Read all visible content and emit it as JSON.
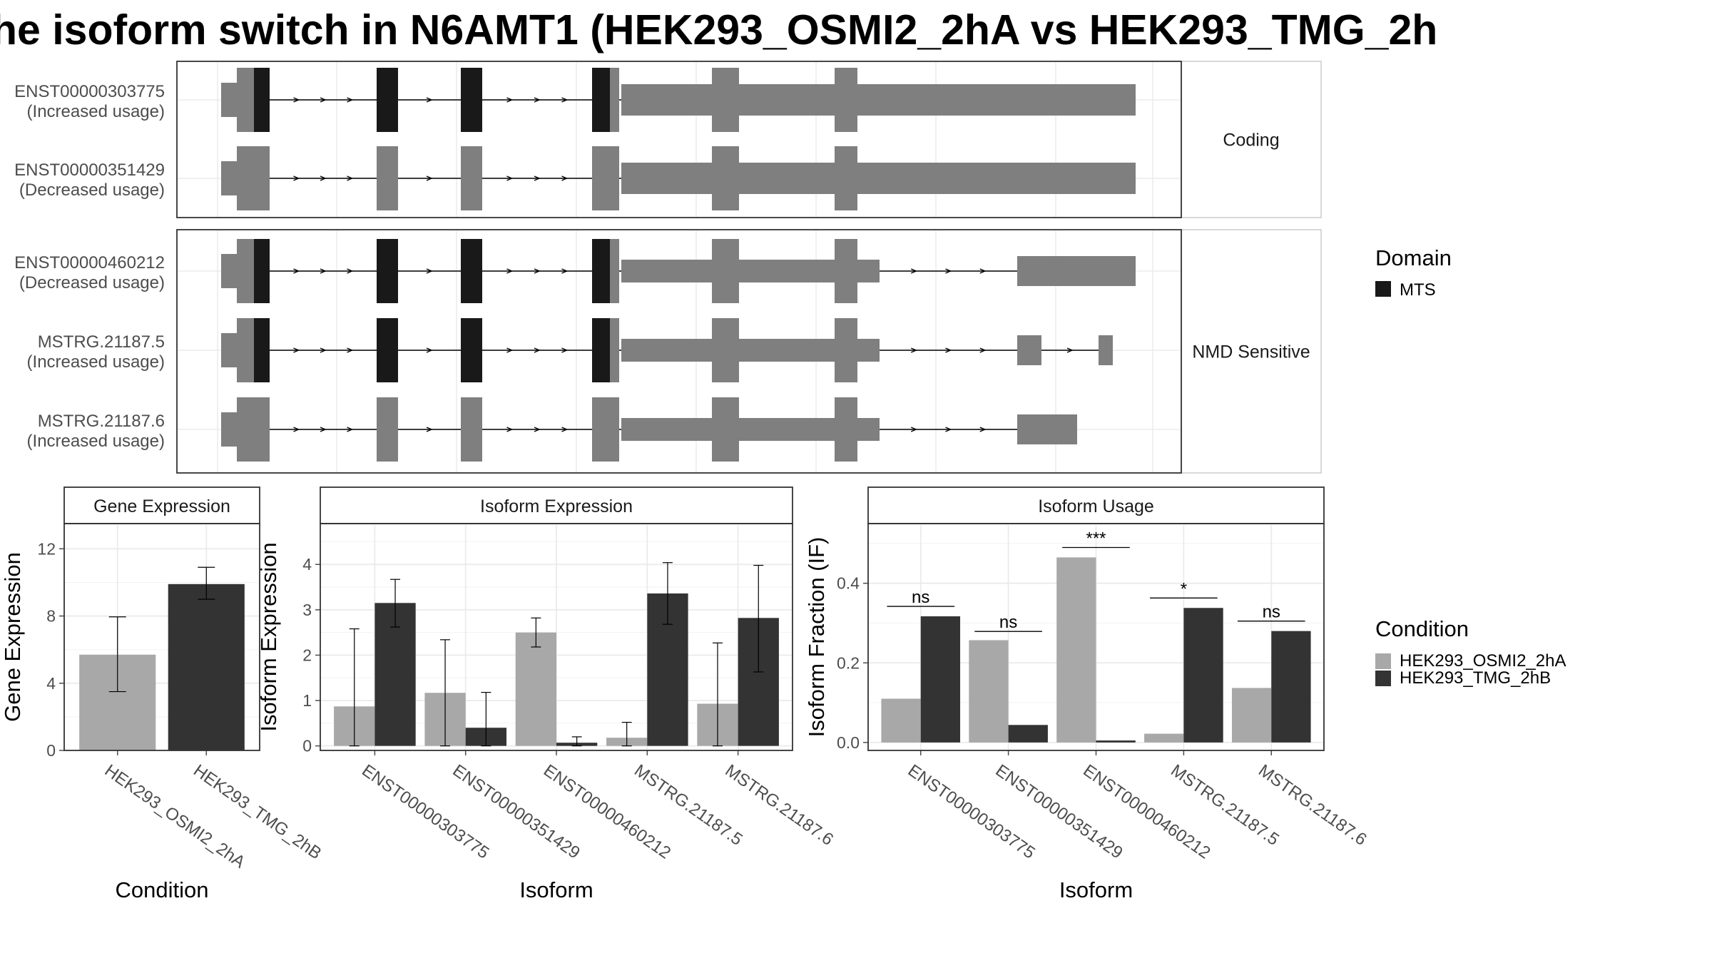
{
  "title": "he isoform switch in N6AMT1 (HEK293_OSMI2_2hA vs HEK293_TMG_2h",
  "colors": {
    "domain_fill": "#191919",
    "exon_fill": "#7f7f7f",
    "cond_a": "#a8a8a8",
    "cond_b": "#333333",
    "grid": "#ebebeb",
    "border": "#333333"
  },
  "structure": {
    "panels": [
      {
        "label": "Coding",
        "transcripts": [
          {
            "id": "ENST00000303775",
            "usage": "(Increased usage)",
            "has_domain": true,
            "utr_tail": [
              [
                871,
                1592
              ]
            ]
          },
          {
            "id": "ENST00000351429",
            "usage": "(Decreased usage)",
            "has_domain": false,
            "utr_tail": [
              [
                871,
                1592
              ]
            ]
          }
        ]
      },
      {
        "label": "NMD Sensitive",
        "transcripts": [
          {
            "id": "ENST00000460212",
            "usage": "(Decreased usage)",
            "has_domain": true,
            "utr_tail": [
              [
                871,
                1233
              ],
              [
                1426,
                1592
              ]
            ]
          },
          {
            "id": "MSTRG.21187.5",
            "usage": "(Increased usage)",
            "has_domain": true,
            "utr_tail": [
              [
                871,
                1233
              ],
              [
                1426,
                1460
              ],
              [
                1540,
                1560
              ]
            ]
          },
          {
            "id": "MSTRG.21187.6",
            "usage": "(Increased usage)",
            "has_domain": false,
            "utr_tail": [
              [
                871,
                1233
              ],
              [
                1426,
                1510
              ]
            ]
          }
        ]
      }
    ],
    "exons": [
      {
        "start": 310,
        "end": 378,
        "cds_start": 332,
        "domain": [
          356,
          378
        ]
      },
      {
        "start": 528,
        "end": 558,
        "cds_start": 528,
        "domain": [
          528,
          558
        ]
      },
      {
        "start": 646,
        "end": 676,
        "cds_start": 646,
        "domain": [
          646,
          676
        ]
      },
      {
        "start": 830,
        "end": 868,
        "cds_start": 830,
        "domain": [
          830,
          855
        ]
      },
      {
        "start": 998,
        "end": 1036,
        "cds_start": 998,
        "domain": null
      },
      {
        "start": 1170,
        "end": 1202,
        "cds_start": 1170,
        "domain": null
      }
    ],
    "exons_no_domain_skip": [],
    "legend": {
      "title": "Domain",
      "items": [
        "MTS"
      ]
    }
  },
  "chart_data": [
    {
      "type": "bar",
      "title": "Gene Expression",
      "xlabel": "Condition",
      "ylabel": "Gene Expression",
      "ylim": [
        0,
        13.5
      ],
      "yticks": [
        0,
        4,
        8,
        12
      ],
      "categories": [
        "HEK293_OSMI2_2hA",
        "HEK293_TMG_2hB"
      ],
      "series": [
        {
          "name": "HEK293_OSMI2_2hA",
          "values": [
            5.7,
            null
          ],
          "err_low": [
            3.5,
            null
          ],
          "err_high": [
            7.95,
            null
          ]
        },
        {
          "name": "HEK293_TMG_2hB",
          "values": [
            null,
            9.9
          ],
          "err_low": [
            null,
            9.0
          ],
          "err_high": [
            null,
            10.9
          ]
        }
      ]
    },
    {
      "type": "bar",
      "title": "Isoform Expression",
      "xlabel": "Isoform",
      "ylabel": "Isoform Expression",
      "ylim": [
        -0.1,
        4.9
      ],
      "yticks": [
        0,
        1,
        2,
        3,
        4
      ],
      "categories": [
        "ENST00000303775",
        "ENST00000351429",
        "ENST00000460212",
        "MSTRG.21187.5",
        "MSTRG.21187.6"
      ],
      "series": [
        {
          "name": "HEK293_OSMI2_2hA",
          "values": [
            0.87,
            1.17,
            2.5,
            0.18,
            0.93
          ],
          "err_low": [
            0.0,
            0.0,
            2.18,
            0.0,
            0.0
          ],
          "err_high": [
            2.58,
            2.34,
            2.82,
            0.52,
            2.27
          ]
        },
        {
          "name": "HEK293_TMG_2hB",
          "values": [
            3.15,
            0.4,
            0.07,
            3.36,
            2.82
          ],
          "err_low": [
            2.62,
            0.0,
            0.0,
            2.68,
            1.63
          ],
          "err_high": [
            3.67,
            1.18,
            0.2,
            4.04,
            3.98
          ]
        }
      ]
    },
    {
      "type": "bar",
      "title": "Isoform Usage",
      "xlabel": "Isoform",
      "ylabel": "Isoform Fraction (IF)",
      "ylim": [
        -0.02,
        0.55
      ],
      "yticks": [
        0.0,
        0.2,
        0.4
      ],
      "ytick_labels": [
        "0.0",
        "0.2",
        "0.4"
      ],
      "categories": [
        "ENST00000303775",
        "ENST00000351429",
        "ENST00000460212",
        "MSTRG.21187.5",
        "MSTRG.21187.6"
      ],
      "series": [
        {
          "name": "HEK293_OSMI2_2hA",
          "values": [
            0.11,
            0.257,
            0.465,
            0.022,
            0.137
          ]
        },
        {
          "name": "HEK293_TMG_2hB",
          "values": [
            0.317,
            0.044,
            0.005,
            0.338,
            0.28
          ]
        }
      ],
      "significance": [
        {
          "label": "ns",
          "y": 0.342
        },
        {
          "label": "ns",
          "y": 0.279
        },
        {
          "label": "***",
          "y": 0.49
        },
        {
          "label": "*",
          "y": 0.363
        },
        {
          "label": "ns",
          "y": 0.305
        }
      ]
    }
  ],
  "condition_legend": {
    "title": "Condition",
    "items": [
      "HEK293_OSMI2_2hA",
      "HEK293_TMG_2hB"
    ]
  }
}
